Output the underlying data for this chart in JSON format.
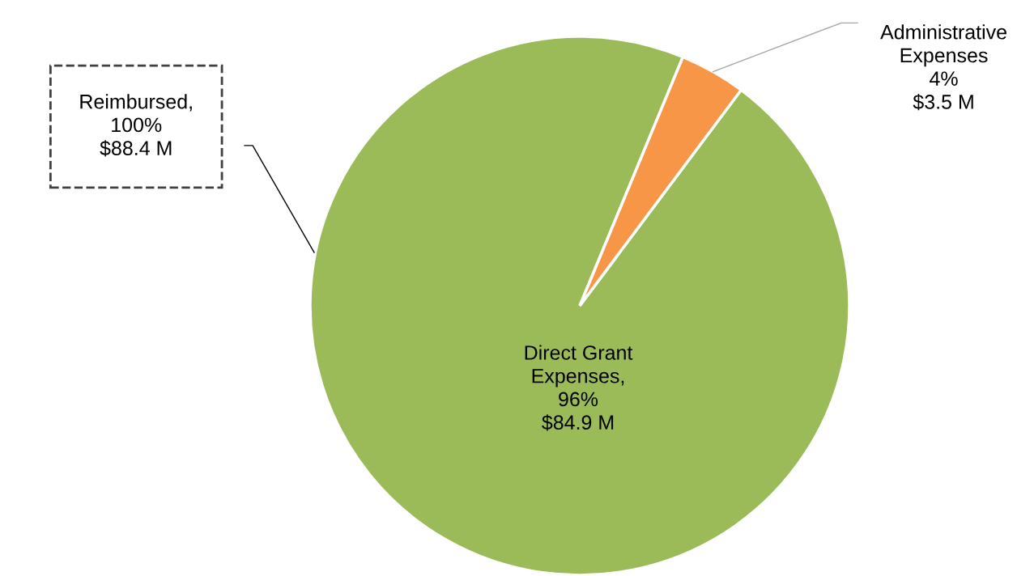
{
  "chart_data": {
    "type": "pie",
    "categories": [
      "Direct Grant\nExpenses",
      "Administrative\nExpenses"
    ],
    "values": [
      84.9,
      3.5
    ],
    "colors": [
      "#9bbb59",
      "#f79646"
    ],
    "value_labels": [
      ",\n96%\n$84.9 M",
      "\n4%\n$3.5 M"
    ],
    "annotations": [
      "Reimbursed,\n100%\n$88.4 M"
    ],
    "legend": false
  }
}
